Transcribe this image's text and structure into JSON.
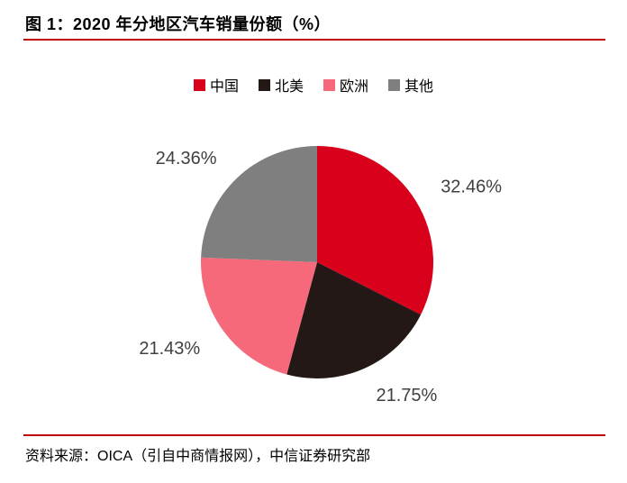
{
  "header": {
    "title": "图 1：2020 年分地区汽车销量份额（%）"
  },
  "footer": {
    "source": "资料来源：OICA（引自中商情报网），中信证券研究部"
  },
  "colors": {
    "accent_line": "#c00000",
    "label_text": "#404040",
    "background": "#ffffff"
  },
  "chart_data": {
    "type": "pie",
    "title": "2020 年分地区汽车销量份额（%）",
    "labels": [
      "中国",
      "北美",
      "欧洲",
      "其他"
    ],
    "values": [
      32.46,
      21.75,
      21.43,
      24.36
    ],
    "data_labels": [
      "32.46%",
      "21.75%",
      "21.43%",
      "24.36%"
    ],
    "colors": [
      "#d9001b",
      "#231815",
      "#f5697a",
      "#7f7f7f"
    ],
    "start_angle_deg": 0,
    "direction": "clockwise",
    "legend_position": "top",
    "data_labels_position": "outside"
  }
}
